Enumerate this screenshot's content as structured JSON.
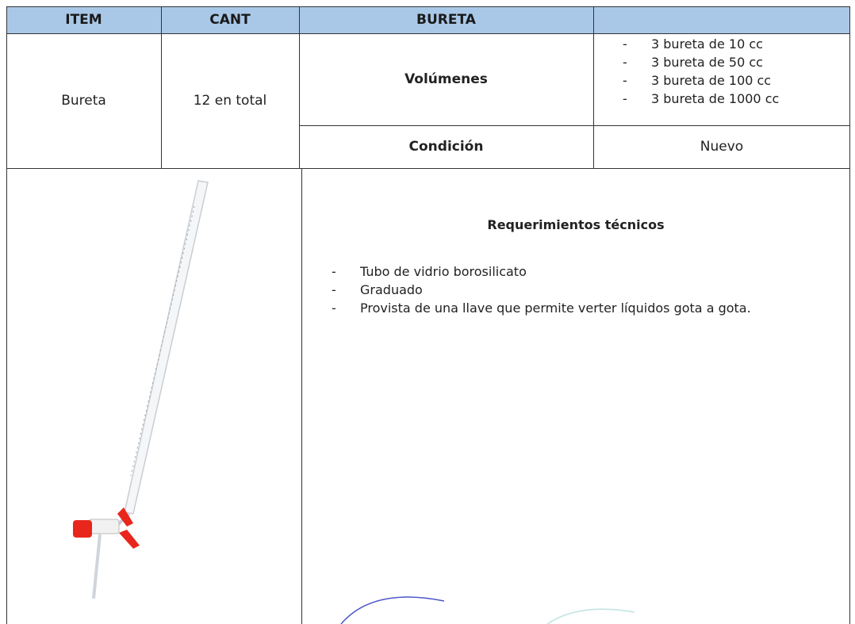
{
  "table": {
    "header": [
      "ITEM",
      "CANT",
      "BURETA"
    ],
    "item": "Bureta",
    "quantity": "12 en total",
    "specs": [
      {
        "label": "Volúmenes",
        "values": [
          "3 bureta de 10 cc",
          "3 bureta de 50 cc",
          "3 bureta de 100 cc",
          "3 bureta de 1000 cc"
        ]
      },
      {
        "label": "Condición",
        "values": [
          "Nuevo"
        ]
      }
    ]
  },
  "requirements": {
    "title": "Requerimientos técnicos",
    "items": [
      "Tubo de vidrio borosilicato",
      "Graduado",
      "Provista de una llave que permite verter líquidos gota a gota."
    ]
  }
}
